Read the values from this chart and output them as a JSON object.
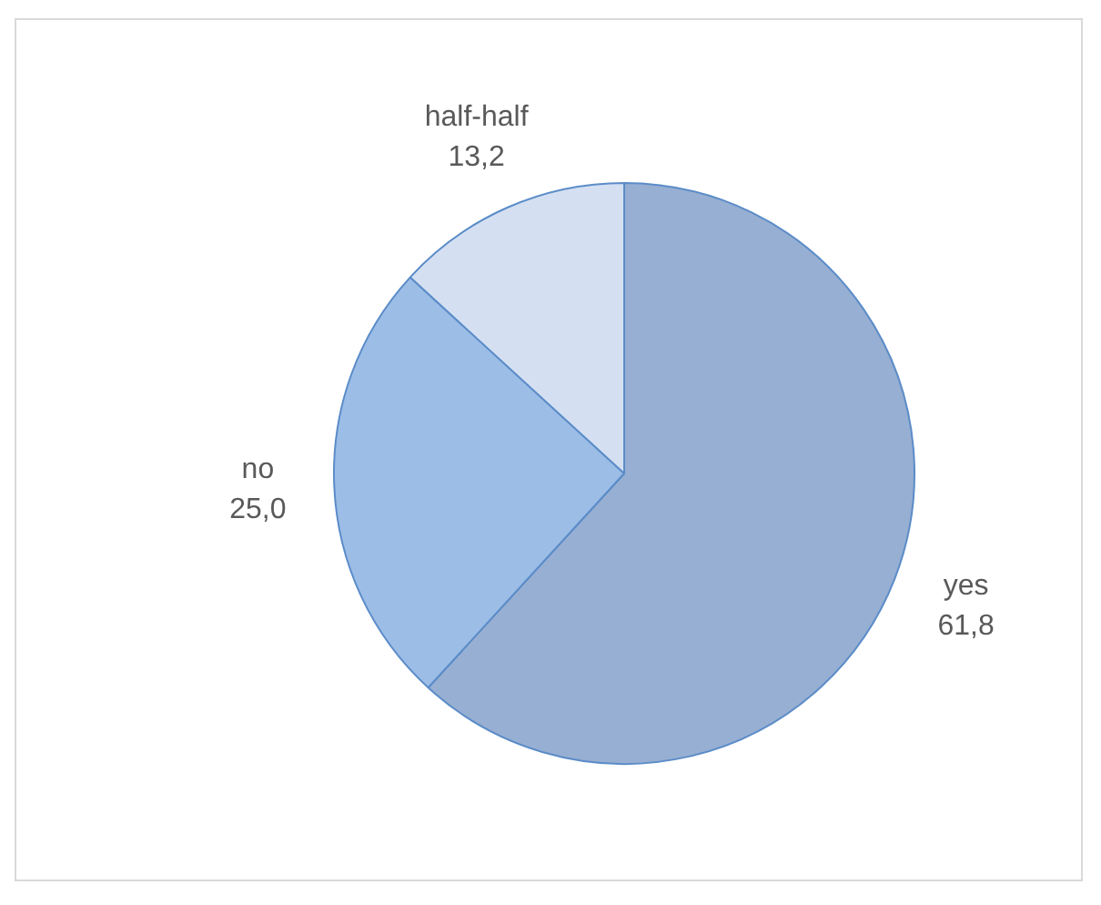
{
  "chart_data": {
    "type": "pie",
    "categories": [
      "yes",
      "no",
      "half-half"
    ],
    "values": [
      61.8,
      25.0,
      13.2
    ],
    "colors": [
      "#97afd2",
      "#9cbde6",
      "#d4e0f2"
    ],
    "value_labels": [
      "61,8",
      "25,0",
      "13,2"
    ],
    "legend": false
  }
}
